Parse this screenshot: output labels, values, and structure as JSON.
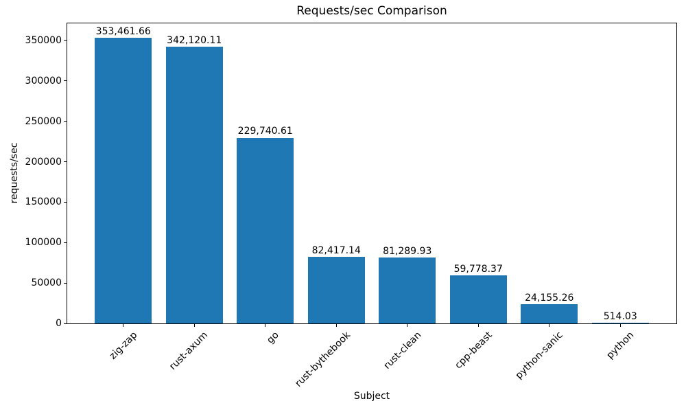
{
  "chart_data": {
    "type": "bar",
    "title": "Requests/sec Comparison",
    "xlabel": "Subject",
    "ylabel": "requests/sec",
    "categories": [
      "zig-zap",
      "rust-axum",
      "go",
      "rust-bythebook",
      "rust-clean",
      "cpp-beast",
      "python-sanic",
      "python"
    ],
    "values": [
      353461.66,
      342120.11,
      229740.61,
      82417.14,
      81289.93,
      59778.37,
      24155.26,
      514.03
    ],
    "bar_labels": [
      "353,461.66",
      "342,120.11",
      "229,740.61",
      "82,417.14",
      "81,289.93",
      "59,778.37",
      "24,155.26",
      "514.03"
    ],
    "yticks": [
      0,
      50000,
      100000,
      150000,
      200000,
      250000,
      300000,
      350000
    ],
    "ylim": [
      0,
      371135
    ],
    "bar_color": "#1f77b4",
    "axis_color": "#000000",
    "background_color": "#ffffff",
    "grid": false,
    "legend": null,
    "x_tick_rotation": 45
  }
}
